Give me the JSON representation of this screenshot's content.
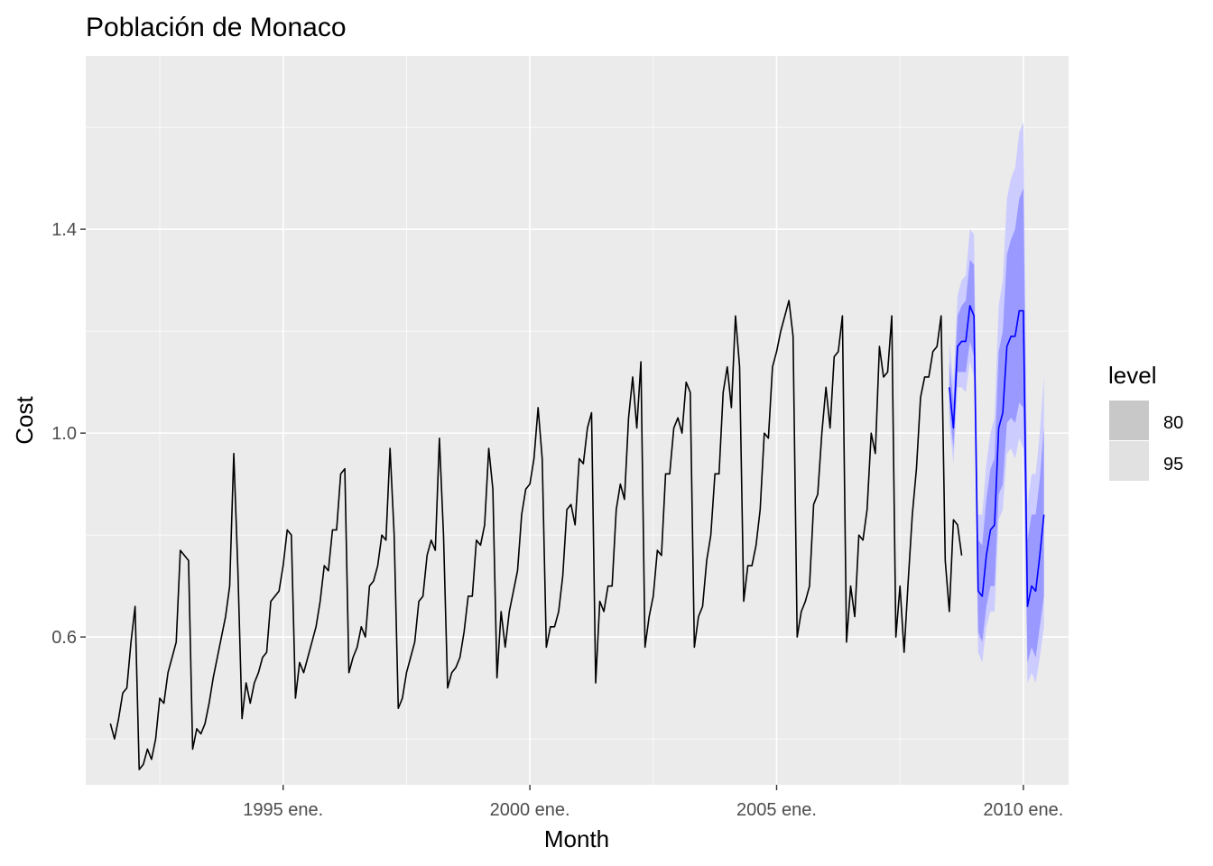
{
  "chart_data": {
    "type": "line",
    "title": "Población de Monaco",
    "xlabel": "Month",
    "ylabel": "Cost",
    "x_ticks": [
      "1995 ene.",
      "2000 ene.",
      "2005 ene.",
      "2010 ene."
    ],
    "y_ticks": [
      "0.6",
      "1.0",
      "1.4"
    ],
    "y_tick_values": [
      0.6,
      1.0,
      1.4
    ],
    "ylim": [
      0.31,
      1.74
    ],
    "xlim": [
      "1991-01",
      "2010-12"
    ],
    "grid": true,
    "legend": {
      "title": "level",
      "position": "right",
      "entries": [
        "80",
        "95"
      ]
    },
    "colors": {
      "panel": "#EBEBEB",
      "grid": "#FFFFFF",
      "history": "#000000",
      "forecast": "#0000FF",
      "band_80": "#9999FF",
      "band_95": "#CCCCFF",
      "legend_80": "#C8C8C8",
      "legend_95": "#E1E1E1"
    },
    "series": [
      {
        "role": "history",
        "start": "1991-07",
        "values": [
          0.43,
          0.4,
          0.44,
          0.49,
          0.5,
          0.59,
          0.66,
          0.34,
          0.35,
          0.38,
          0.36,
          0.4,
          0.48,
          0.47,
          0.53,
          0.56,
          0.59,
          0.77,
          0.76,
          0.75,
          0.38,
          0.42,
          0.41,
          0.43,
          0.47,
          0.52,
          0.56,
          0.6,
          0.64,
          0.7,
          0.96,
          0.73,
          0.44,
          0.51,
          0.47,
          0.51,
          0.53,
          0.56,
          0.57,
          0.67,
          0.68,
          0.69,
          0.74,
          0.81,
          0.8,
          0.48,
          0.55,
          0.53,
          0.56,
          0.59,
          0.62,
          0.67,
          0.74,
          0.73,
          0.81,
          0.81,
          0.92,
          0.93,
          0.53,
          0.56,
          0.58,
          0.62,
          0.6,
          0.7,
          0.71,
          0.74,
          0.8,
          0.79,
          0.97,
          0.8,
          0.46,
          0.48,
          0.53,
          0.56,
          0.59,
          0.67,
          0.68,
          0.76,
          0.79,
          0.77,
          0.99,
          0.8,
          0.5,
          0.53,
          0.54,
          0.56,
          0.61,
          0.68,
          0.68,
          0.79,
          0.78,
          0.82,
          0.97,
          0.89,
          0.52,
          0.65,
          0.58,
          0.65,
          0.69,
          0.73,
          0.84,
          0.89,
          0.9,
          0.95,
          1.05,
          0.95,
          0.58,
          0.62,
          0.62,
          0.65,
          0.72,
          0.85,
          0.86,
          0.82,
          0.95,
          0.94,
          1.01,
          1.04,
          0.51,
          0.67,
          0.65,
          0.7,
          0.7,
          0.85,
          0.9,
          0.87,
          1.03,
          1.11,
          1.01,
          1.14,
          0.58,
          0.64,
          0.68,
          0.77,
          0.76,
          0.92,
          0.92,
          1.01,
          1.03,
          1.0,
          1.1,
          1.08,
          0.58,
          0.64,
          0.66,
          0.75,
          0.8,
          0.92,
          0.92,
          1.08,
          1.13,
          1.05,
          1.23,
          1.13,
          0.67,
          0.74,
          0.74,
          0.78,
          0.85,
          1.0,
          0.99,
          1.13,
          1.16,
          1.2,
          1.23,
          1.26,
          1.19,
          0.6,
          0.65,
          0.67,
          0.7,
          0.86,
          0.88,
          1.0,
          1.09,
          1.01,
          1.15,
          1.16,
          1.23,
          0.59,
          0.7,
          0.64,
          0.8,
          0.79,
          0.85,
          1.0,
          0.96,
          1.17,
          1.11,
          1.12,
          1.23,
          0.6,
          0.7,
          0.57,
          0.71,
          0.84,
          0.93,
          1.07,
          1.11,
          1.11,
          1.16,
          1.17,
          1.23,
          0.75,
          0.65,
          0.83,
          0.82,
          0.76
        ]
      },
      {
        "role": "forecast",
        "start": "2008-07",
        "values": [
          1.09,
          1.01,
          1.17,
          1.18,
          1.18,
          1.25,
          1.23,
          0.69,
          0.68,
          0.76,
          0.81,
          0.82,
          1.01,
          1.04,
          1.17,
          1.19,
          1.19,
          1.24,
          1.24,
          0.66,
          0.7,
          0.69,
          0.76,
          0.84
        ],
        "lo80": [
          1.05,
          0.97,
          1.12,
          1.12,
          1.12,
          1.18,
          1.15,
          0.61,
          0.59,
          0.66,
          0.7,
          0.7,
          0.88,
          0.9,
          1.02,
          1.03,
          1.02,
          1.06,
          1.05,
          0.55,
          0.58,
          0.56,
          0.62,
          0.68
        ],
        "hi80": [
          1.14,
          1.06,
          1.23,
          1.25,
          1.26,
          1.34,
          1.33,
          0.79,
          0.78,
          0.87,
          0.93,
          0.95,
          1.16,
          1.2,
          1.35,
          1.38,
          1.4,
          1.46,
          1.48,
          0.79,
          0.84,
          0.84,
          0.91,
          1.01
        ],
        "lo95": [
          1.02,
          0.94,
          1.09,
          1.09,
          1.08,
          1.14,
          1.11,
          0.57,
          0.55,
          0.62,
          0.65,
          0.65,
          0.83,
          0.85,
          0.96,
          0.97,
          0.95,
          0.99,
          0.97,
          0.51,
          0.53,
          0.51,
          0.56,
          0.62
        ],
        "hi95": [
          1.18,
          1.1,
          1.27,
          1.3,
          1.31,
          1.4,
          1.39,
          0.84,
          0.84,
          0.94,
          1.0,
          1.03,
          1.25,
          1.3,
          1.46,
          1.5,
          1.52,
          1.59,
          1.61,
          0.86,
          0.92,
          0.92,
          1.0,
          1.11
        ]
      }
    ]
  }
}
